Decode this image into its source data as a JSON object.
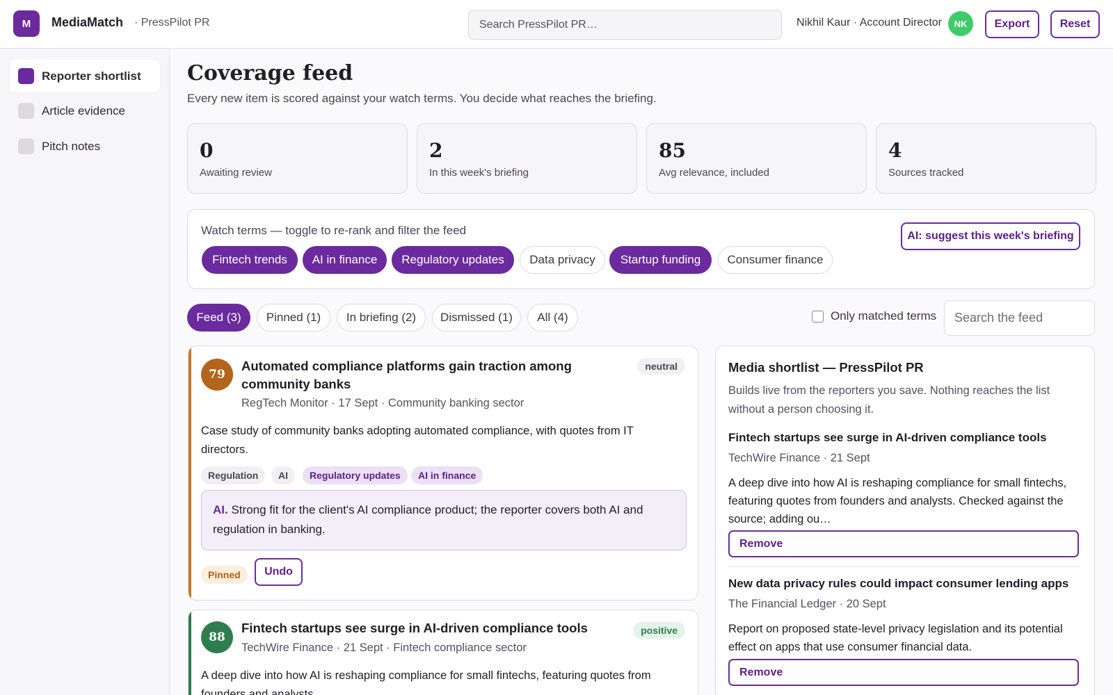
{
  "app": {
    "logo_letter": "M",
    "name": "MediaMatch",
    "workspace": "· PressPilot PR",
    "search_placeholder": "Search PressPilot PR…",
    "user": "Nikhil Kaur · Account Director",
    "avatar_initials": "NK",
    "export_label": "Export",
    "reset_label": "Reset"
  },
  "sidebar": {
    "items": [
      {
        "label": "Reporter shortlist",
        "active": true
      },
      {
        "label": "Article evidence",
        "active": false
      },
      {
        "label": "Pitch notes",
        "active": false
      }
    ]
  },
  "main": {
    "title": "Coverage feed",
    "subtitle": "Every new item is scored against your watch terms. You decide what reaches the briefing."
  },
  "stats": [
    {
      "value": "0",
      "label": "Awaiting review"
    },
    {
      "value": "2",
      "label": "In this week's briefing"
    },
    {
      "value": "85",
      "label": "Avg relevance, included"
    },
    {
      "value": "4",
      "label": "Sources tracked"
    }
  ],
  "watch_terms": {
    "label": "Watch terms — toggle to re-rank and filter the feed",
    "ai_button": "AI: suggest this week's briefing",
    "terms": [
      {
        "label": "Fintech trends",
        "on": true
      },
      {
        "label": "AI in finance",
        "on": true
      },
      {
        "label": "Regulatory updates",
        "on": true
      },
      {
        "label": "Data privacy",
        "on": false
      },
      {
        "label": "Startup funding",
        "on": true
      },
      {
        "label": "Consumer finance",
        "on": false
      }
    ]
  },
  "tabs": {
    "items": [
      {
        "label": "Feed (3)",
        "active": true
      },
      {
        "label": "Pinned (1)",
        "active": false
      },
      {
        "label": "In briefing (2)",
        "active": false
      },
      {
        "label": "Dismissed (1)",
        "active": false
      },
      {
        "label": "All (4)",
        "active": false
      }
    ],
    "only_matched_label": "Only matched terms",
    "only_matched_checked": false,
    "search_placeholder": "Search the feed"
  },
  "feed": [
    {
      "score": "79",
      "score_color": "#b3651b",
      "title": "Automated compliance platforms gain traction among community banks",
      "sentiment": "neutral",
      "meta": "RegTech Monitor · 17 Sept · Community banking sector",
      "summary": "Case study of community banks adopting automated compliance, with quotes from IT directors.",
      "tags": [
        {
          "label": "Regulation",
          "matched": false
        },
        {
          "label": "AI",
          "matched": false
        },
        {
          "label": "Regulatory updates",
          "matched": true
        },
        {
          "label": "AI in finance",
          "matched": true
        }
      ],
      "ai_prefix": "AI.",
      "ai_note": "Strong fit for the client's AI compliance product; the reporter covers both AI and regulation in banking.",
      "status": "Pinned",
      "undo_label": "Undo"
    },
    {
      "score": "88",
      "score_color": "#2f7d4f",
      "title": "Fintech startups see surge in AI-driven compliance tools",
      "sentiment": "positive",
      "meta": "TechWire Finance · 21 Sept · Fintech compliance sector",
      "summary": "A deep dive into how AI is reshaping compliance for small fintechs, featuring quotes from founders and analysts."
    }
  ],
  "shortlist": {
    "title": "Media shortlist — PressPilot PR",
    "description": "Builds live from the reporters you save. Nothing reaches the list without a person choosing it.",
    "remove_label": "Remove",
    "items": [
      {
        "title": "Fintech startups see surge in AI-driven compliance tools",
        "meta": "TechWire Finance · 21 Sept",
        "summary": "A deep dive into how AI is reshaping compliance for small fintechs, featuring quotes from founders and analysts. Checked against the source; adding ou…"
      },
      {
        "title": "New data privacy rules could impact consumer lending apps",
        "meta": "The Financial Ledger · 20 Sept",
        "summary": "Report on proposed state-level privacy legislation and its potential effect on apps that use consumer financial data."
      }
    ]
  },
  "colors": {
    "brand": "#6b2a9e",
    "avatar": "#3fcb6a",
    "pinned_accent": "#c67a2b",
    "positive_accent": "#2f7d4f"
  }
}
